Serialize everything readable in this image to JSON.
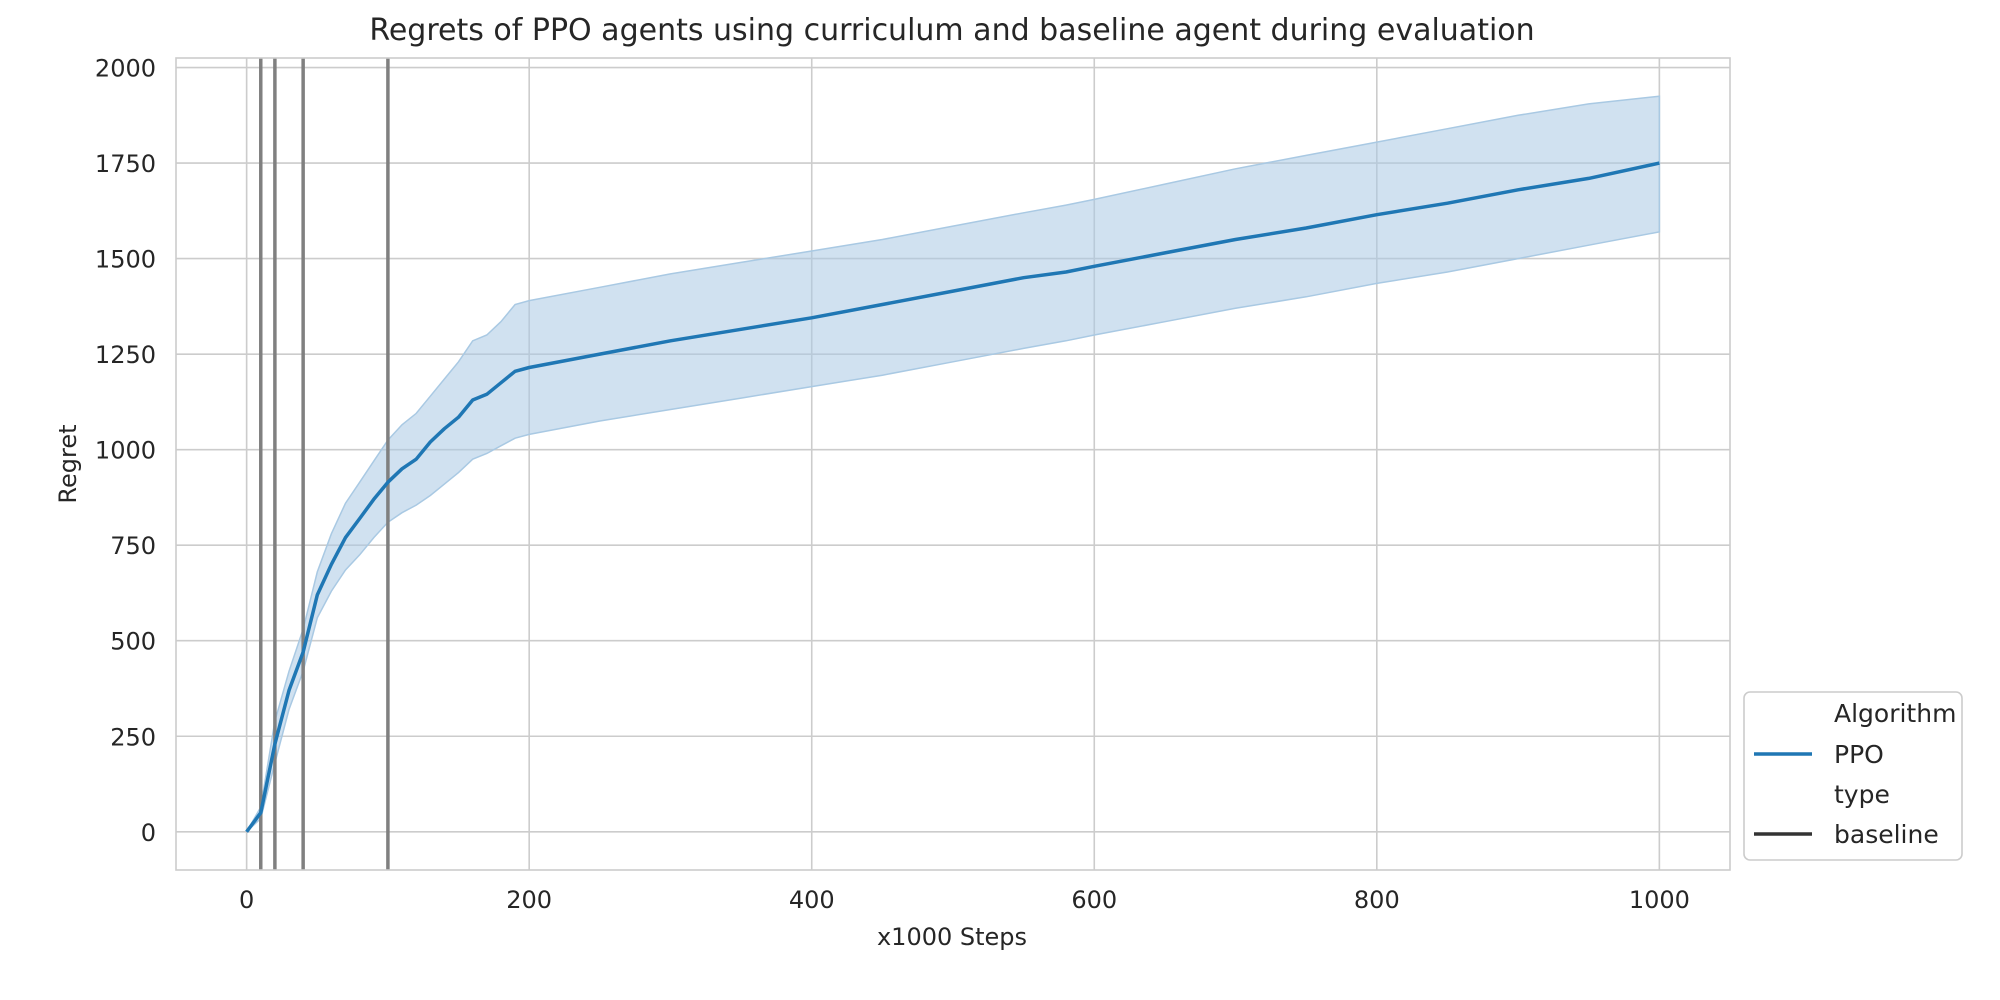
{
  "chart_data": {
    "type": "line",
    "title": "Regrets of PPO agents using curriculum and baseline agent during evaluation",
    "xlabel": "x1000 Steps",
    "ylabel": "Regret",
    "xlim": [
      -50,
      1050
    ],
    "ylim": [
      -100,
      2025
    ],
    "xticks": [
      0,
      200,
      400,
      600,
      800,
      1000
    ],
    "yticks": [
      0,
      250,
      500,
      750,
      1000,
      1250,
      1500,
      1750,
      2000
    ],
    "grid": true,
    "legend_placement": "bottom-right outside",
    "vertical_lines": [
      10,
      20,
      40,
      100
    ],
    "series": [
      {
        "name": "PPO",
        "color": "#1f77b4",
        "band_color": "#a9c9e3",
        "x": [
          0,
          10,
          20,
          30,
          40,
          50,
          60,
          70,
          80,
          90,
          100,
          110,
          120,
          130,
          140,
          150,
          160,
          170,
          180,
          190,
          200,
          250,
          300,
          350,
          400,
          450,
          500,
          550,
          580,
          600,
          650,
          700,
          750,
          800,
          850,
          900,
          950,
          1000
        ],
        "y": [
          0,
          50,
          230,
          370,
          470,
          620,
          700,
          770,
          820,
          870,
          915,
          950,
          975,
          1020,
          1055,
          1085,
          1130,
          1145,
          1175,
          1205,
          1215,
          1250,
          1285,
          1315,
          1345,
          1380,
          1415,
          1450,
          1465,
          1480,
          1515,
          1550,
          1580,
          1615,
          1645,
          1680,
          1710,
          1750
        ],
        "lower": [
          0,
          35,
          180,
          320,
          420,
          560,
          630,
          685,
          725,
          770,
          810,
          835,
          855,
          880,
          910,
          940,
          975,
          990,
          1010,
          1030,
          1040,
          1075,
          1105,
          1135,
          1165,
          1195,
          1230,
          1265,
          1285,
          1300,
          1335,
          1370,
          1400,
          1435,
          1465,
          1500,
          1535,
          1570
        ],
        "upper": [
          0,
          65,
          290,
          420,
          530,
          680,
          780,
          860,
          915,
          970,
          1025,
          1065,
          1095,
          1140,
          1185,
          1230,
          1285,
          1300,
          1335,
          1380,
          1390,
          1425,
          1460,
          1490,
          1520,
          1550,
          1585,
          1620,
          1640,
          1655,
          1695,
          1735,
          1770,
          1805,
          1840,
          1875,
          1905,
          1925
        ]
      }
    ],
    "legend": {
      "title1": "Algorithm",
      "entry1": "PPO",
      "title2": "type",
      "entry2": "baseline",
      "entry2_color": "#333333"
    },
    "vline_color": "#808080"
  }
}
